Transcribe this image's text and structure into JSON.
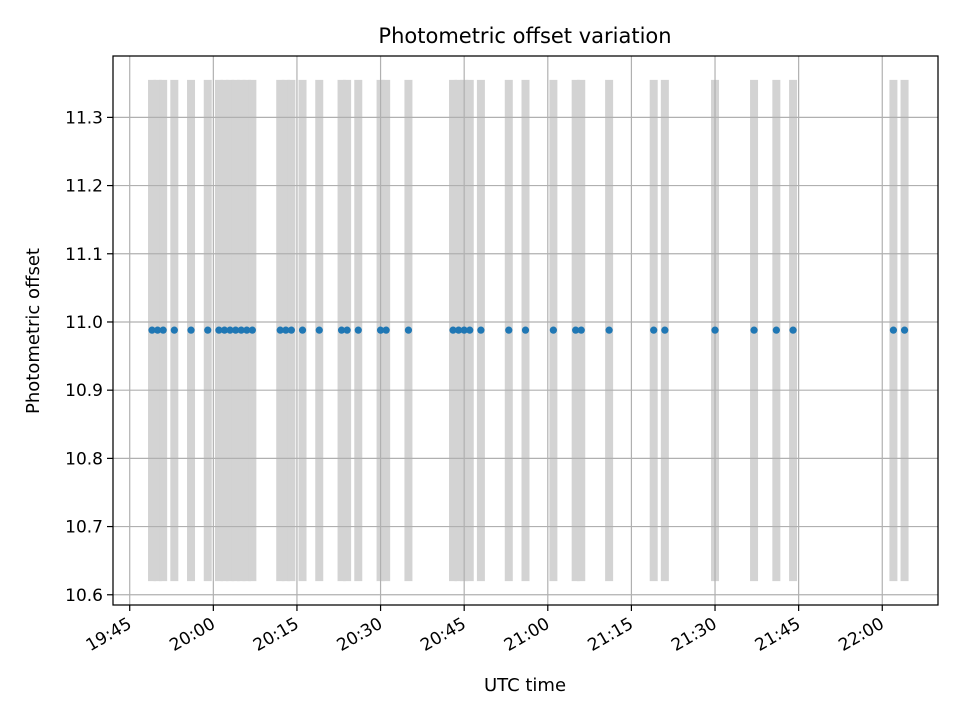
{
  "chart_data": {
    "type": "scatter",
    "title": "Photometric offset variation",
    "xlabel": "UTC time",
    "ylabel": "Photometric offset",
    "xlim": [
      "19:42",
      "22:10"
    ],
    "ylim": [
      10.585,
      11.39
    ],
    "x_ticks": [
      "19:45",
      "20:00",
      "20:15",
      "20:30",
      "20:45",
      "21:00",
      "21:15",
      "21:30",
      "21:45",
      "22:00"
    ],
    "y_ticks": [
      "10.6",
      "10.7",
      "10.8",
      "10.9",
      "11.0",
      "11.1",
      "11.2",
      "11.3"
    ],
    "grid": true,
    "band_range": [
      10.62,
      11.355
    ],
    "colors": {
      "points": "#1f77b4",
      "bands": "#d3d3d3",
      "grid": "#b0b0b0"
    },
    "series": [
      {
        "y": 10.988,
        "x": [
          "19:49",
          "19:50",
          "19:51",
          "19:53",
          "19:56",
          "19:59",
          "20:01",
          "20:02",
          "20:03",
          "20:04",
          "20:05",
          "20:06",
          "20:07",
          "20:12",
          "20:13",
          "20:14",
          "20:16",
          "20:19",
          "20:23",
          "20:24",
          "20:26",
          "20:30",
          "20:31",
          "20:35",
          "20:43",
          "20:44",
          "20:45",
          "20:46",
          "20:48",
          "20:53",
          "20:56",
          "21:01",
          "21:05",
          "21:06",
          "21:11",
          "21:19",
          "21:21",
          "21:30",
          "21:37",
          "21:41",
          "21:44",
          "22:02",
          "22:04"
        ]
      }
    ],
    "bands": [
      "19:49",
      "19:50",
      "19:51",
      "19:53",
      "19:56",
      "19:59",
      "20:01",
      "20:02",
      "20:03",
      "20:04",
      "20:05",
      "20:06",
      "20:07",
      "20:12",
      "20:13",
      "20:14",
      "20:16",
      "20:19",
      "20:23",
      "20:24",
      "20:26",
      "20:30",
      "20:31",
      "20:35",
      "20:43",
      "20:44",
      "20:45",
      "20:46",
      "20:48",
      "20:53",
      "20:56",
      "21:01",
      "21:05",
      "21:06",
      "21:11",
      "21:19",
      "21:21",
      "21:30",
      "21:37",
      "21:41",
      "21:44",
      "22:02",
      "22:04"
    ]
  }
}
